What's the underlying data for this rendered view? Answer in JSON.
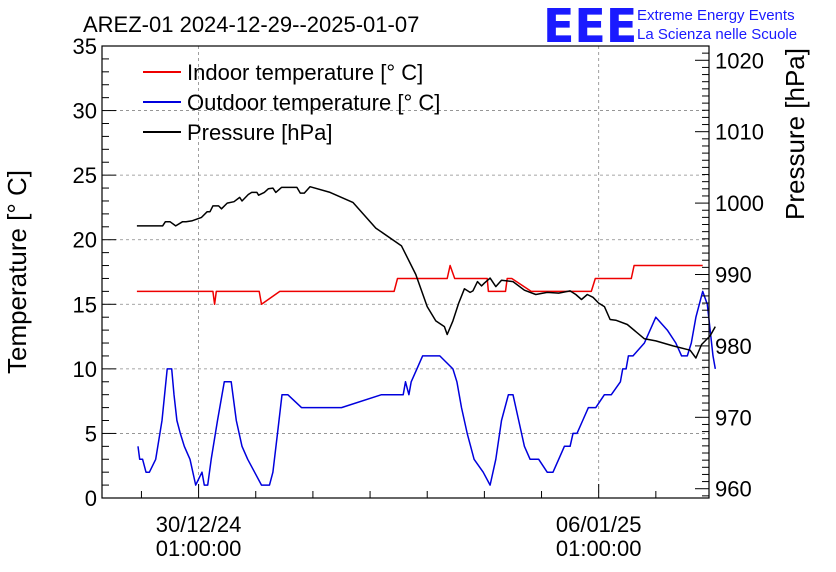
{
  "title": "AREZ-01 2024-12-29--2025-01-07",
  "logo": {
    "letters": "EEE",
    "line1": "Extreme Energy Events",
    "line2": "La Scienza nelle Scuole",
    "color": "#1a1aff"
  },
  "chart_data": {
    "type": "line",
    "xlabel": "",
    "ylabel_left": "Temperature [° C]",
    "ylabel_right": "Pressure [hPa]",
    "ylim_left": [
      0,
      35
    ],
    "ylim_right": [
      958.7,
      1022
    ],
    "xlim_days": [
      -1.69,
      8.93
    ],
    "grid": true,
    "legend_position": "top-left",
    "x_ticks": [
      {
        "date": "30/12/24",
        "time": "01:00:00",
        "day": 0
      },
      {
        "date": "06/01/25",
        "time": "01:00:00",
        "day": 7
      }
    ],
    "y_ticks_left": [
      0,
      5,
      10,
      15,
      20,
      25,
      30,
      35
    ],
    "y_ticks_right": [
      960,
      970,
      980,
      990,
      1000,
      1010,
      1020
    ],
    "series": [
      {
        "name": "Indoor temperature [° C]",
        "axis": "left",
        "color": "#ee0000",
        "x": [
          -1.08,
          0.25,
          0.28,
          0.31,
          1.06,
          1.1,
          1.42,
          3.42,
          3.48,
          4.35,
          4.4,
          4.48,
          5.05,
          5.07,
          5.27,
          5.37,
          5.4,
          5.48,
          5.82,
          5.87,
          6.87,
          6.94,
          7.57,
          7.62,
          8.82
        ],
        "values": [
          16,
          16,
          15,
          16,
          16,
          15,
          16,
          16,
          17,
          17,
          18,
          17,
          17,
          16,
          16,
          16,
          17,
          17,
          16,
          16,
          16,
          17,
          17,
          18,
          18
        ]
      },
      {
        "name": "Outdoor temperature [° C]",
        "axis": "left",
        "color": "#0000dd",
        "x": [
          -1.06,
          -1.03,
          -0.98,
          -0.92,
          -0.86,
          -0.75,
          -0.64,
          -0.55,
          -0.47,
          -0.43,
          -0.38,
          -0.32,
          -0.25,
          -0.15,
          -0.05,
          0.06,
          0.1,
          0.16,
          0.22,
          0.33,
          0.45,
          0.57,
          0.66,
          0.76,
          0.86,
          0.98,
          1.1,
          1.24,
          1.3,
          1.38,
          1.46,
          1.56,
          1.8,
          2.5,
          3.2,
          3.58,
          3.62,
          3.68,
          3.72,
          3.82,
          3.92,
          4.05,
          4.22,
          4.45,
          4.52,
          4.6,
          4.7,
          4.82,
          4.98,
          5.1,
          5.2,
          5.3,
          5.42,
          5.5,
          5.6,
          5.7,
          5.8,
          5.95,
          6.1,
          6.2,
          6.3,
          6.4,
          6.5,
          6.55,
          6.62,
          6.72,
          6.82,
          6.95,
          7.1,
          7.22,
          7.38,
          7.42,
          7.48,
          7.52,
          7.6,
          7.8,
          8.0,
          8.2,
          8.35,
          8.45,
          8.55,
          8.62,
          8.7,
          8.82,
          8.9
        ],
        "values": [
          4,
          3,
          3,
          2,
          2,
          3,
          6,
          10,
          10,
          8,
          6,
          5,
          4,
          3,
          1,
          2,
          1,
          1,
          3,
          6,
          9,
          9,
          6,
          4,
          3,
          2,
          1,
          1,
          2,
          5,
          8,
          8,
          7,
          7,
          8,
          8,
          9,
          8,
          9,
          10,
          11,
          11,
          11,
          10,
          9,
          7,
          5,
          3,
          2,
          1,
          3,
          6,
          8,
          8,
          6,
          4,
          3,
          3,
          2,
          2,
          3,
          4,
          4,
          5,
          5,
          6,
          7,
          7,
          8,
          8,
          9,
          10,
          10,
          11,
          11,
          12,
          14,
          13,
          12,
          11,
          11,
          12,
          14,
          16,
          15
        ],
        "extra_x": [
          8.9,
          9.0,
          9.04
        ],
        "extra_values": [
          15,
          11,
          10
        ]
      },
      {
        "name": "Pressure [hPa]",
        "axis": "right",
        "color": "#000000",
        "x": [
          -1.08,
          -0.63,
          -0.58,
          -0.5,
          -0.4,
          -0.28,
          -0.22,
          -0.12,
          0.05,
          0.15,
          0.2,
          0.25,
          0.35,
          0.4,
          0.5,
          0.62,
          0.72,
          0.76,
          0.87,
          0.93,
          1.02,
          1.05,
          1.15,
          1.22,
          1.3,
          1.35,
          1.45,
          1.72,
          1.78,
          1.85,
          1.95,
          2.3,
          2.7,
          3.1,
          3.55,
          3.8,
          4.0,
          4.15,
          4.3,
          4.35,
          4.45,
          4.55,
          4.65,
          4.75,
          4.8,
          4.88,
          4.95,
          5.0,
          5.1,
          5.2,
          5.3,
          5.5,
          5.7,
          5.9,
          6.1,
          6.3,
          6.5,
          6.6,
          6.7,
          6.8,
          6.9,
          7.0,
          7.1,
          7.2,
          7.3,
          7.5,
          7.8,
          8.0,
          8.3,
          8.6,
          8.7,
          8.8,
          8.95,
          9.04
        ],
        "values": [
          996.8,
          996.8,
          997.4,
          997.4,
          996.8,
          997.4,
          997.4,
          997.5,
          998.0,
          998.8,
          998.8,
          999.6,
          999.6,
          999.2,
          1000.0,
          1000.2,
          1000.8,
          1000.3,
          1001.2,
          1001.5,
          1001.5,
          1001.1,
          1001.5,
          1002.0,
          1002.1,
          1001.5,
          1002.2,
          1002.2,
          1001.4,
          1001.4,
          1002.3,
          1001.5,
          1000.1,
          996.5,
          994.0,
          990.0,
          985.5,
          983.5,
          982.7,
          981.6,
          983.5,
          986.0,
          988.0,
          987.5,
          987.7,
          989.0,
          988.4,
          988.8,
          989.5,
          988.3,
          989.2,
          989.0,
          987.8,
          987.2,
          987.5,
          987.4,
          987.7,
          987.2,
          986.5,
          987.2,
          986.8,
          986.0,
          985.5,
          983.7,
          983.6,
          983.0,
          981.0,
          980.7,
          980.0,
          979.4,
          978.3,
          980.2,
          981.4,
          982.7
        ]
      }
    ]
  }
}
